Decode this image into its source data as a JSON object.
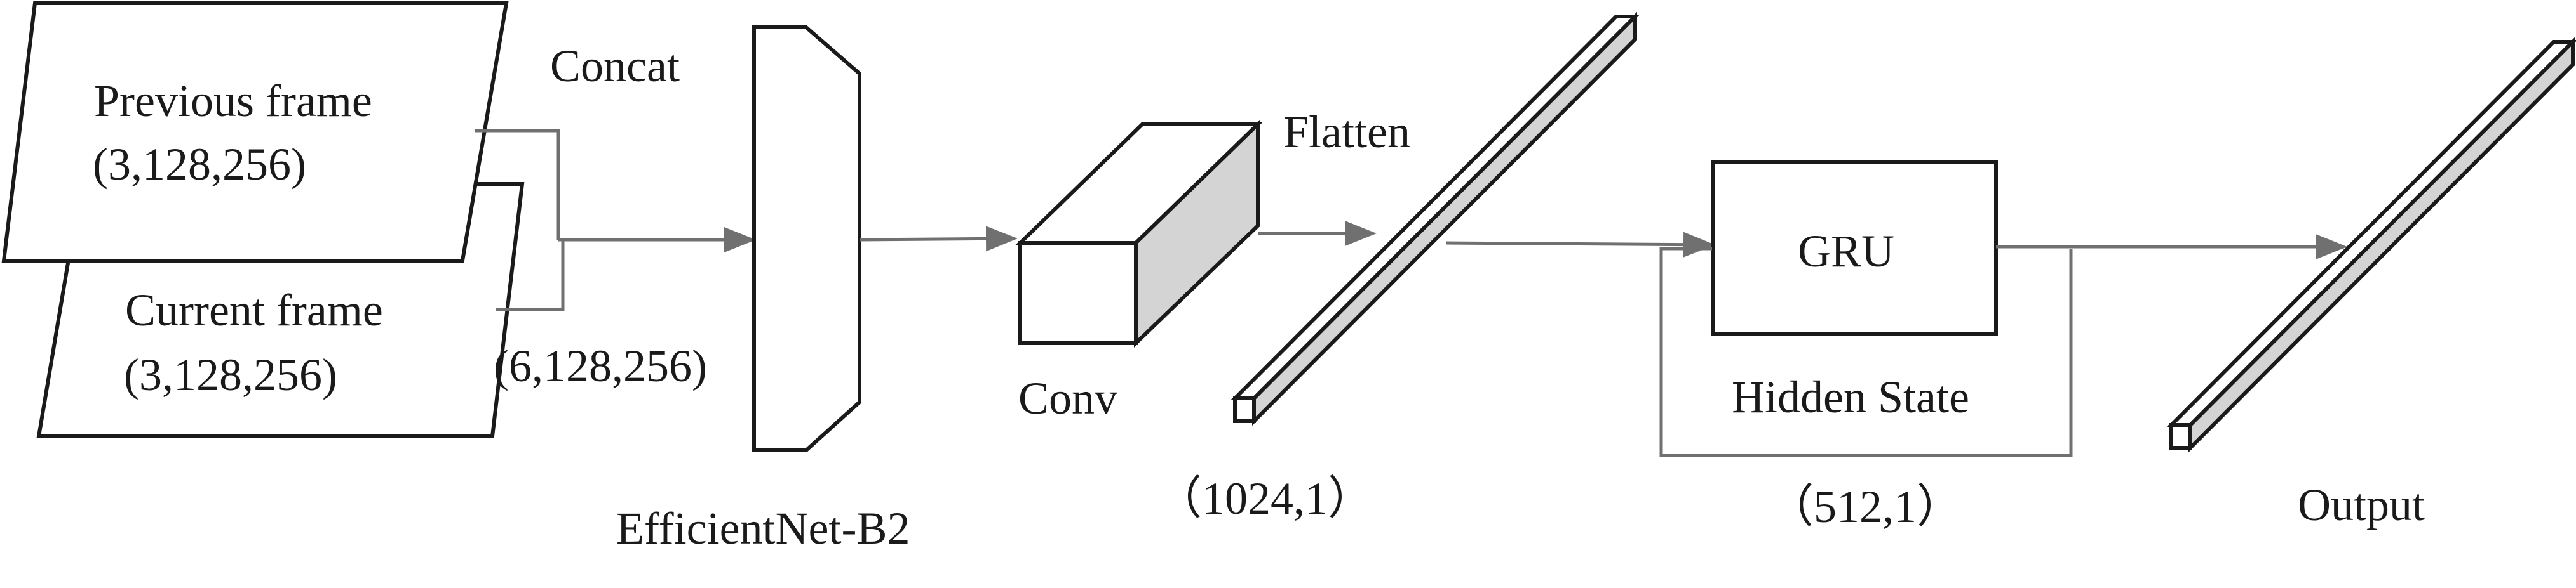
{
  "labels": {
    "previous_frame": "Previous frame",
    "previous_frame_shape": "(3,128,256)",
    "current_frame": "Current frame",
    "current_frame_shape": "(3,128,256)",
    "concat": "Concat",
    "concat_shape": "(6,128,256)",
    "efficientnet": "EfficientNet-B2",
    "conv": "Conv",
    "flatten": "Flatten",
    "flatten_shape": "（1024,1）",
    "gru": "GRU",
    "hidden_state": "Hidden State",
    "gru_shape": "（512,1）",
    "output": "Output"
  },
  "colors": {
    "stroke": "#1a1a1a",
    "arrow": "#707070",
    "shade": "#d4d4d4"
  }
}
